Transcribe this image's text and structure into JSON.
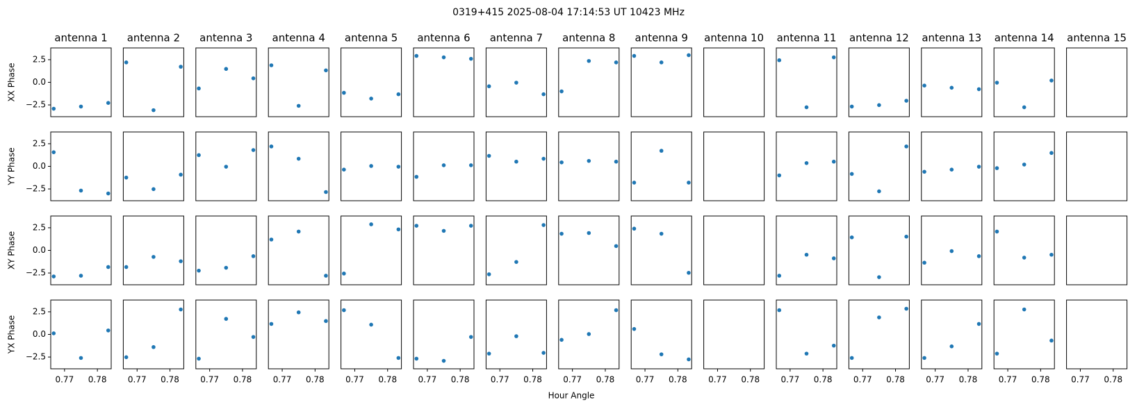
{
  "title": "0319+415  2025-08-04 17:14:53 UT  10423 MHz",
  "xlabel": "Hour Angle",
  "chart_data": [
    {
      "type": "scatter",
      "title": "antenna 1",
      "ylabel": "XX Phase",
      "color": "#1f77b4",
      "x": [
        0.7667,
        0.775,
        0.7833
      ],
      "y": [
        -2.92,
        -2.68,
        -2.28
      ],
      "xlim": [
        0.7658,
        0.7842
      ],
      "ylim": [
        -3.8,
        3.8
      ],
      "yticks": [
        {
          "value": -2.5,
          "label": "−2.5"
        },
        {
          "value": 0,
          "label": "0.0"
        },
        2.5
      ]
    },
    {
      "type": "scatter",
      "title": "antenna 2",
      "color": "#1f77b4",
      "x": [
        0.7667,
        0.775,
        0.7833
      ],
      "y": [
        2.2,
        -3.08,
        1.72
      ],
      "xlim": [
        0.7658,
        0.7842
      ],
      "ylim": [
        -3.8,
        3.8
      ]
    },
    {
      "type": "scatter",
      "title": "antenna 3",
      "color": "#1f77b4",
      "x": [
        0.7667,
        0.775,
        0.7833
      ],
      "y": [
        -0.68,
        1.48,
        0.44
      ],
      "xlim": [
        0.7658,
        0.7842
      ],
      "ylim": [
        -3.8,
        3.8
      ]
    },
    {
      "type": "scatter",
      "title": "antenna 4",
      "color": "#1f77b4",
      "x": [
        0.7667,
        0.775,
        0.7833
      ],
      "y": [
        1.88,
        -2.6,
        1.32
      ],
      "xlim": [
        0.7658,
        0.7842
      ],
      "ylim": [
        -3.8,
        3.8
      ]
    },
    {
      "type": "scatter",
      "title": "antenna 5",
      "color": "#1f77b4",
      "x": [
        0.7667,
        0.775,
        0.7833
      ],
      "y": [
        -1.16,
        -1.8,
        -1.32
      ],
      "xlim": [
        0.7658,
        0.7842
      ],
      "ylim": [
        -3.8,
        3.8
      ]
    },
    {
      "type": "scatter",
      "title": "antenna 6",
      "color": "#1f77b4",
      "x": [
        0.7667,
        0.775,
        0.7833
      ],
      "y": [
        2.92,
        2.76,
        2.6
      ],
      "xlim": [
        0.7658,
        0.7842
      ],
      "ylim": [
        -3.8,
        3.8
      ]
    },
    {
      "type": "scatter",
      "title": "antenna 7",
      "color": "#1f77b4",
      "x": [
        0.7667,
        0.775,
        0.7833
      ],
      "y": [
        -0.44,
        -0.04,
        -1.32
      ],
      "xlim": [
        0.7658,
        0.7842
      ],
      "ylim": [
        -3.8,
        3.8
      ]
    },
    {
      "type": "scatter",
      "title": "antenna 8",
      "color": "#1f77b4",
      "x": [
        0.7667,
        0.775,
        0.7833
      ],
      "y": [
        -1.0,
        2.36,
        2.2
      ],
      "xlim": [
        0.7658,
        0.7842
      ],
      "ylim": [
        -3.8,
        3.8
      ]
    },
    {
      "type": "scatter",
      "title": "antenna 9",
      "color": "#1f77b4",
      "x": [
        0.7667,
        0.775,
        0.7833
      ],
      "y": [
        2.92,
        2.2,
        3.0
      ],
      "xlim": [
        0.7658,
        0.7842
      ],
      "ylim": [
        -3.8,
        3.8
      ]
    },
    {
      "type": "scatter",
      "title": "antenna 10",
      "color": "#1f77b4",
      "x": [],
      "y": [],
      "xlim": [
        0.7658,
        0.7842
      ],
      "ylim": [
        -3.8,
        3.8
      ]
    },
    {
      "type": "scatter",
      "title": "antenna 11",
      "color": "#1f77b4",
      "x": [
        0.7667,
        0.775,
        0.7833
      ],
      "y": [
        2.44,
        -2.76,
        2.76
      ],
      "xlim": [
        0.7658,
        0.7842
      ],
      "ylim": [
        -3.8,
        3.8
      ]
    },
    {
      "type": "scatter",
      "title": "antenna 12",
      "color": "#1f77b4",
      "x": [
        0.7667,
        0.775,
        0.7833
      ],
      "y": [
        -2.68,
        -2.52,
        -2.04
      ],
      "xlim": [
        0.7658,
        0.7842
      ],
      "ylim": [
        -3.8,
        3.8
      ]
    },
    {
      "type": "scatter",
      "title": "antenna 13",
      "color": "#1f77b4",
      "x": [
        0.7667,
        0.775,
        0.7833
      ],
      "y": [
        -0.36,
        -0.6,
        -0.76
      ],
      "xlim": [
        0.7658,
        0.7842
      ],
      "ylim": [
        -3.8,
        3.8
      ]
    },
    {
      "type": "scatter",
      "title": "antenna 14",
      "color": "#1f77b4",
      "x": [
        0.7667,
        0.775,
        0.7833
      ],
      "y": [
        -0.04,
        -2.76,
        0.2
      ],
      "xlim": [
        0.7658,
        0.7842
      ],
      "ylim": [
        -3.8,
        3.8
      ]
    },
    {
      "type": "scatter",
      "title": "antenna 15",
      "color": "#1f77b4",
      "x": [],
      "y": [],
      "xlim": [
        0.7658,
        0.7842
      ],
      "ylim": [
        -3.8,
        3.8
      ]
    },
    {
      "type": "scatter",
      "ylabel": "YY Phase",
      "color": "#1f77b4",
      "x": [
        0.7667,
        0.775,
        0.7833
      ],
      "y": [
        1.56,
        -2.68,
        -3.0
      ],
      "xlim": [
        0.7658,
        0.7842
      ],
      "ylim": [
        -3.8,
        3.8
      ],
      "yticks": [
        {
          "value": -2.5,
          "label": "−2.5"
        },
        {
          "value": 0,
          "label": "0.0"
        },
        2.5
      ]
    },
    {
      "type": "scatter",
      "color": "#1f77b4",
      "x": [
        0.7667,
        0.775,
        0.7833
      ],
      "y": [
        -1.24,
        -2.52,
        -0.92
      ],
      "xlim": [
        0.7658,
        0.7842
      ],
      "ylim": [
        -3.8,
        3.8
      ]
    },
    {
      "type": "scatter",
      "color": "#1f77b4",
      "x": [
        0.7667,
        0.775,
        0.7833
      ],
      "y": [
        1.24,
        -0.04,
        1.8
      ],
      "xlim": [
        0.7658,
        0.7842
      ],
      "ylim": [
        -3.8,
        3.8
      ]
    },
    {
      "type": "scatter",
      "color": "#1f77b4",
      "x": [
        0.7667,
        0.775,
        0.7833
      ],
      "y": [
        2.2,
        0.84,
        -2.84
      ],
      "xlim": [
        0.7658,
        0.7842
      ],
      "ylim": [
        -3.8,
        3.8
      ]
    },
    {
      "type": "scatter",
      "color": "#1f77b4",
      "x": [
        0.7667,
        0.775,
        0.7833
      ],
      "y": [
        -0.36,
        0.04,
        -0.04
      ],
      "xlim": [
        0.7658,
        0.7842
      ],
      "ylim": [
        -3.8,
        3.8
      ]
    },
    {
      "type": "scatter",
      "color": "#1f77b4",
      "x": [
        0.7667,
        0.775,
        0.7833
      ],
      "y": [
        -1.16,
        0.12,
        0.12
      ],
      "xlim": [
        0.7658,
        0.7842
      ],
      "ylim": [
        -3.8,
        3.8
      ]
    },
    {
      "type": "scatter",
      "color": "#1f77b4",
      "x": [
        0.7667,
        0.775,
        0.7833
      ],
      "y": [
        1.16,
        0.52,
        0.84
      ],
      "xlim": [
        0.7658,
        0.7842
      ],
      "ylim": [
        -3.8,
        3.8
      ]
    },
    {
      "type": "scatter",
      "color": "#1f77b4",
      "x": [
        0.7667,
        0.775,
        0.7833
      ],
      "y": [
        0.44,
        0.6,
        0.52
      ],
      "xlim": [
        0.7658,
        0.7842
      ],
      "ylim": [
        -3.8,
        3.8
      ]
    },
    {
      "type": "scatter",
      "color": "#1f77b4",
      "x": [
        0.7667,
        0.775,
        0.7833
      ],
      "y": [
        -1.8,
        1.72,
        -1.8
      ],
      "xlim": [
        0.7658,
        0.7842
      ],
      "ylim": [
        -3.8,
        3.8
      ]
    },
    {
      "type": "scatter",
      "color": "#1f77b4",
      "x": [],
      "y": [],
      "xlim": [
        0.7658,
        0.7842
      ],
      "ylim": [
        -3.8,
        3.8
      ]
    },
    {
      "type": "scatter",
      "color": "#1f77b4",
      "x": [
        0.7667,
        0.775,
        0.7833
      ],
      "y": [
        -1.0,
        0.36,
        0.52
      ],
      "xlim": [
        0.7658,
        0.7842
      ],
      "ylim": [
        -3.8,
        3.8
      ]
    },
    {
      "type": "scatter",
      "color": "#1f77b4",
      "x": [
        0.7667,
        0.775,
        0.7833
      ],
      "y": [
        -0.84,
        -2.76,
        2.2
      ],
      "xlim": [
        0.7658,
        0.7842
      ],
      "ylim": [
        -3.8,
        3.8
      ]
    },
    {
      "type": "scatter",
      "color": "#1f77b4",
      "x": [
        0.7667,
        0.775,
        0.7833
      ],
      "y": [
        -0.6,
        -0.36,
        -0.04
      ],
      "xlim": [
        0.7658,
        0.7842
      ],
      "ylim": [
        -3.8,
        3.8
      ]
    },
    {
      "type": "scatter",
      "color": "#1f77b4",
      "x": [
        0.7667,
        0.775,
        0.7833
      ],
      "y": [
        -0.2,
        0.2,
        1.48
      ],
      "xlim": [
        0.7658,
        0.7842
      ],
      "ylim": [
        -3.8,
        3.8
      ]
    },
    {
      "type": "scatter",
      "color": "#1f77b4",
      "x": [],
      "y": [],
      "xlim": [
        0.7658,
        0.7842
      ],
      "ylim": [
        -3.8,
        3.8
      ]
    },
    {
      "type": "scatter",
      "ylabel": "XY Phase",
      "color": "#1f77b4",
      "x": [
        0.7667,
        0.775,
        0.7833
      ],
      "y": [
        -2.88,
        -2.8,
        -1.84
      ],
      "xlim": [
        0.7658,
        0.7842
      ],
      "ylim": [
        -3.8,
        3.8
      ],
      "yticks": [
        {
          "value": -2.5,
          "label": "−2.5"
        },
        {
          "value": 0,
          "label": "0.0"
        },
        2.5
      ]
    },
    {
      "type": "scatter",
      "color": "#1f77b4",
      "x": [
        0.7667,
        0.775,
        0.7833
      ],
      "y": [
        -1.84,
        -0.72,
        -1.2
      ],
      "xlim": [
        0.7658,
        0.7842
      ],
      "ylim": [
        -3.8,
        3.8
      ]
    },
    {
      "type": "scatter",
      "color": "#1f77b4",
      "x": [
        0.7667,
        0.775,
        0.7833
      ],
      "y": [
        -2.24,
        -1.92,
        -0.64
      ],
      "xlim": [
        0.7658,
        0.7842
      ],
      "ylim": [
        -3.8,
        3.8
      ]
    },
    {
      "type": "scatter",
      "color": "#1f77b4",
      "x": [
        0.7667,
        0.775,
        0.7833
      ],
      "y": [
        1.2,
        2.08,
        -2.8
      ],
      "xlim": [
        0.7658,
        0.7842
      ],
      "ylim": [
        -3.8,
        3.8
      ]
    },
    {
      "type": "scatter",
      "color": "#1f77b4",
      "x": [
        0.7667,
        0.775,
        0.7833
      ],
      "y": [
        -2.56,
        2.88,
        2.32
      ],
      "xlim": [
        0.7658,
        0.7842
      ],
      "ylim": [
        -3.8,
        3.8
      ]
    },
    {
      "type": "scatter",
      "color": "#1f77b4",
      "x": [
        0.7667,
        0.775,
        0.7833
      ],
      "y": [
        2.72,
        2.16,
        2.72
      ],
      "xlim": [
        0.7658,
        0.7842
      ],
      "ylim": [
        -3.8,
        3.8
      ]
    },
    {
      "type": "scatter",
      "color": "#1f77b4",
      "x": [
        0.7667,
        0.775,
        0.7833
      ],
      "y": [
        -2.64,
        -1.28,
        2.8
      ],
      "xlim": [
        0.7658,
        0.7842
      ],
      "ylim": [
        -3.8,
        3.8
      ]
    },
    {
      "type": "scatter",
      "color": "#1f77b4",
      "x": [
        0.7667,
        0.775,
        0.7833
      ],
      "y": [
        1.84,
        1.92,
        0.48
      ],
      "xlim": [
        0.7658,
        0.7842
      ],
      "ylim": [
        -3.8,
        3.8
      ]
    },
    {
      "type": "scatter",
      "color": "#1f77b4",
      "x": [
        0.7667,
        0.775,
        0.7833
      ],
      "y": [
        2.4,
        1.84,
        -2.48
      ],
      "xlim": [
        0.7658,
        0.7842
      ],
      "ylim": [
        -3.8,
        3.8
      ]
    },
    {
      "type": "scatter",
      "color": "#1f77b4",
      "x": [],
      "y": [],
      "xlim": [
        0.7658,
        0.7842
      ],
      "ylim": [
        -3.8,
        3.8
      ]
    },
    {
      "type": "scatter",
      "color": "#1f77b4",
      "x": [
        0.7667,
        0.775,
        0.7833
      ],
      "y": [
        -2.8,
        -0.48,
        -0.88
      ],
      "xlim": [
        0.7658,
        0.7842
      ],
      "ylim": [
        -3.8,
        3.8
      ]
    },
    {
      "type": "scatter",
      "color": "#1f77b4",
      "x": [
        0.7667,
        0.775,
        0.7833
      ],
      "y": [
        1.44,
        -2.96,
        1.52
      ],
      "xlim": [
        0.7658,
        0.7842
      ],
      "ylim": [
        -3.8,
        3.8
      ]
    },
    {
      "type": "scatter",
      "color": "#1f77b4",
      "x": [
        0.7667,
        0.775,
        0.7833
      ],
      "y": [
        -1.36,
        -0.08,
        -0.64
      ],
      "xlim": [
        0.7658,
        0.7842
      ],
      "ylim": [
        -3.8,
        3.8
      ]
    },
    {
      "type": "scatter",
      "color": "#1f77b4",
      "x": [
        0.7667,
        0.775,
        0.7833
      ],
      "y": [
        2.08,
        -0.8,
        -0.48
      ],
      "xlim": [
        0.7658,
        0.7842
      ],
      "ylim": [
        -3.8,
        3.8
      ]
    },
    {
      "type": "scatter",
      "color": "#1f77b4",
      "x": [],
      "y": [],
      "xlim": [
        0.7658,
        0.7842
      ],
      "ylim": [
        -3.8,
        3.8
      ]
    },
    {
      "type": "scatter",
      "ylabel": "YX Phase",
      "color": "#1f77b4",
      "x": [
        0.7667,
        0.775,
        0.7833
      ],
      "y": [
        0.12,
        -2.6,
        0.44
      ],
      "xlim": [
        0.7658,
        0.7842
      ],
      "ylim": [
        -3.8,
        3.8
      ],
      "yticks": [
        {
          "value": -2.5,
          "label": "−2.5"
        },
        {
          "value": 0,
          "label": "0.0"
        },
        2.5
      ],
      "xticks": [
        0.77,
        0.78
      ]
    },
    {
      "type": "scatter",
      "color": "#1f77b4",
      "x": [
        0.7667,
        0.775,
        0.7833
      ],
      "y": [
        -2.52,
        -1.4,
        2.76
      ],
      "xlim": [
        0.7658,
        0.7842
      ],
      "ylim": [
        -3.8,
        3.8
      ],
      "xticks": [
        0.77,
        0.78
      ]
    },
    {
      "type": "scatter",
      "color": "#1f77b4",
      "x": [
        0.7667,
        0.775,
        0.7833
      ],
      "y": [
        -2.68,
        1.72,
        -0.28
      ],
      "xlim": [
        0.7658,
        0.7842
      ],
      "ylim": [
        -3.8,
        3.8
      ],
      "xticks": [
        0.77,
        0.78
      ]
    },
    {
      "type": "scatter",
      "color": "#1f77b4",
      "x": [
        0.7667,
        0.775,
        0.7833
      ],
      "y": [
        1.16,
        2.44,
        1.48
      ],
      "xlim": [
        0.7658,
        0.7842
      ],
      "ylim": [
        -3.8,
        3.8
      ],
      "xticks": [
        0.77,
        0.78
      ]
    },
    {
      "type": "scatter",
      "color": "#1f77b4",
      "x": [
        0.7667,
        0.775,
        0.7833
      ],
      "y": [
        2.68,
        1.08,
        -2.6
      ],
      "xlim": [
        0.7658,
        0.7842
      ],
      "ylim": [
        -3.8,
        3.8
      ],
      "xticks": [
        0.77,
        0.78
      ]
    },
    {
      "type": "scatter",
      "color": "#1f77b4",
      "x": [
        0.7667,
        0.775,
        0.7833
      ],
      "y": [
        -2.68,
        -2.92,
        -0.28
      ],
      "xlim": [
        0.7658,
        0.7842
      ],
      "ylim": [
        -3.8,
        3.8
      ],
      "xticks": [
        0.77,
        0.78
      ]
    },
    {
      "type": "scatter",
      "color": "#1f77b4",
      "x": [
        0.7667,
        0.775,
        0.7833
      ],
      "y": [
        -2.12,
        -0.2,
        -2.04
      ],
      "xlim": [
        0.7658,
        0.7842
      ],
      "ylim": [
        -3.8,
        3.8
      ],
      "xticks": [
        0.77,
        0.78
      ]
    },
    {
      "type": "scatter",
      "color": "#1f77b4",
      "x": [
        0.7667,
        0.775,
        0.7833
      ],
      "y": [
        -0.6,
        0.04,
        2.68
      ],
      "xlim": [
        0.7658,
        0.7842
      ],
      "ylim": [
        -3.8,
        3.8
      ],
      "xticks": [
        0.77,
        0.78
      ]
    },
    {
      "type": "scatter",
      "color": "#1f77b4",
      "x": [
        0.7667,
        0.775,
        0.7833
      ],
      "y": [
        0.6,
        -2.2,
        -2.76
      ],
      "xlim": [
        0.7658,
        0.7842
      ],
      "ylim": [
        -3.8,
        3.8
      ],
      "xticks": [
        0.77,
        0.78
      ]
    },
    {
      "type": "scatter",
      "color": "#1f77b4",
      "x": [],
      "y": [],
      "xlim": [
        0.7658,
        0.7842
      ],
      "ylim": [
        -3.8,
        3.8
      ],
      "xticks": [
        0.77,
        0.78
      ]
    },
    {
      "type": "scatter",
      "color": "#1f77b4",
      "x": [
        0.7667,
        0.775,
        0.7833
      ],
      "y": [
        2.68,
        -2.12,
        -1.24
      ],
      "xlim": [
        0.7658,
        0.7842
      ],
      "ylim": [
        -3.8,
        3.8
      ],
      "xticks": [
        0.77,
        0.78
      ]
    },
    {
      "type": "scatter",
      "color": "#1f77b4",
      "x": [
        0.7667,
        0.775,
        0.7833
      ],
      "y": [
        -2.6,
        1.88,
        2.84
      ],
      "xlim": [
        0.7658,
        0.7842
      ],
      "ylim": [
        -3.8,
        3.8
      ],
      "xticks": [
        0.77,
        0.78
      ]
    },
    {
      "type": "scatter",
      "color": "#1f77b4",
      "x": [
        0.7667,
        0.775,
        0.7833
      ],
      "y": [
        -2.6,
        -1.32,
        1.16
      ],
      "xlim": [
        0.7658,
        0.7842
      ],
      "ylim": [
        -3.8,
        3.8
      ],
      "xticks": [
        0.77,
        0.78
      ]
    },
    {
      "type": "scatter",
      "color": "#1f77b4",
      "x": [
        0.7667,
        0.775,
        0.7833
      ],
      "y": [
        -2.12,
        2.76,
        -0.68
      ],
      "xlim": [
        0.7658,
        0.7842
      ],
      "ylim": [
        -3.8,
        3.8
      ],
      "xticks": [
        0.77,
        0.78
      ]
    },
    {
      "type": "scatter",
      "color": "#1f77b4",
      "x": [],
      "y": [],
      "xlim": [
        0.7658,
        0.7842
      ],
      "ylim": [
        -3.8,
        3.8
      ],
      "xticks": [
        0.77,
        0.78
      ]
    }
  ]
}
